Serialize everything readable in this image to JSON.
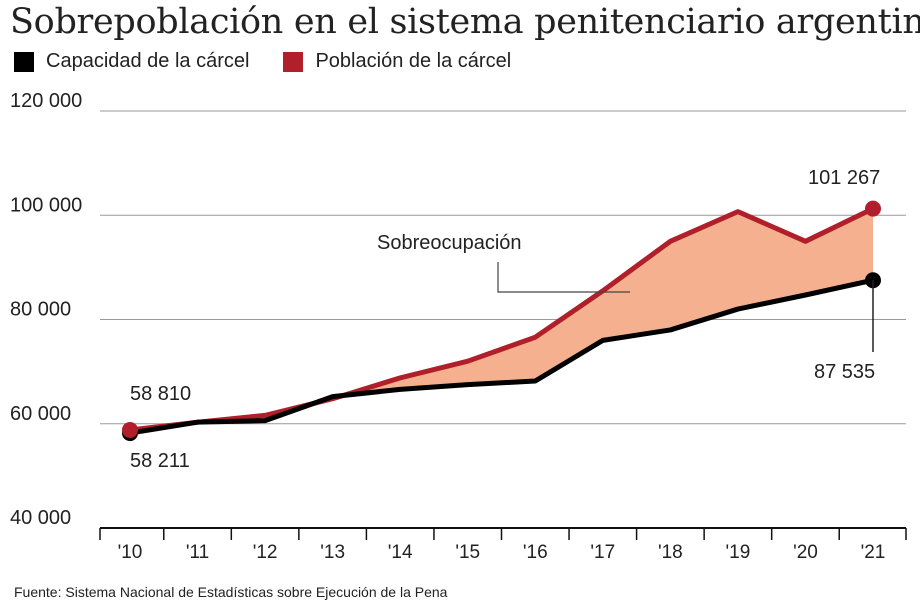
{
  "title": "Sobrepoblación en el sistema penitenciario argentino",
  "source": "Fuente: Sistema Nacional de Estadísticas sobre Ejecución de la Pena",
  "colors": {
    "capacity": "#000000",
    "population": "#b01f2a",
    "fill": "#f4b08f",
    "grid": "#9a9a9a"
  },
  "chart_data": {
    "type": "line",
    "categories": [
      "'10",
      "'11",
      "'12",
      "'13",
      "'14",
      "'15",
      "'16",
      "'17",
      "'18",
      "'19",
      "'20",
      "'21"
    ],
    "series": [
      {
        "name": "Capacidad de la cárcel",
        "values": [
          58211,
          60300,
          60600,
          65200,
          66600,
          67500,
          68200,
          76000,
          78000,
          82000,
          84700,
          87535
        ]
      },
      {
        "name": "Población de la cárcel",
        "values": [
          58810,
          60300,
          61600,
          64800,
          68800,
          72000,
          76600,
          85500,
          95000,
          100700,
          95000,
          101267
        ]
      }
    ],
    "yticks": [
      "120 000",
      "100 000",
      "80 000",
      "60 000",
      "40 000"
    ],
    "ytick_values": [
      120000,
      100000,
      80000,
      60000,
      40000
    ],
    "ylim": [
      40000,
      120000
    ],
    "grid": true,
    "legend": "top-left",
    "annotations": {
      "overcrowding": "Sobreocupación",
      "start_population": "58 810",
      "start_capacity": "58 211",
      "end_population": "101 267",
      "end_capacity": "87 535"
    }
  }
}
